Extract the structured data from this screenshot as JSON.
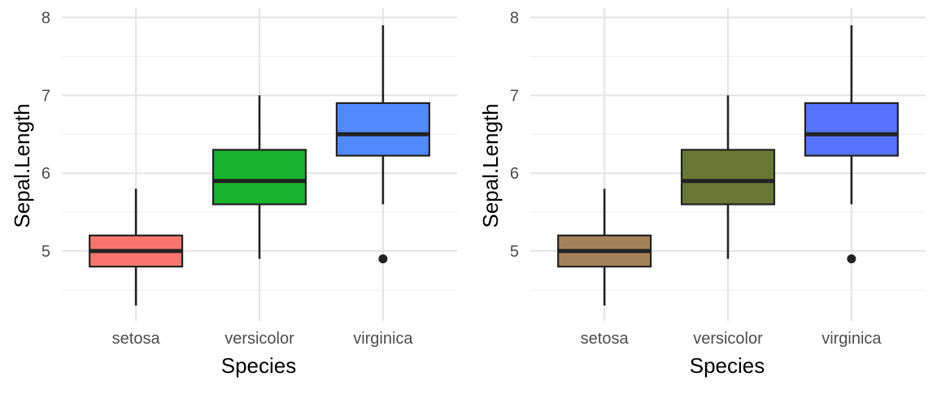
{
  "chart_data": [
    {
      "type": "boxplot",
      "xlabel": "Species",
      "ylabel": "Sepal.Length",
      "categories": [
        "setosa",
        "versicolor",
        "virginica"
      ],
      "ylim": [
        4.18,
        8.0
      ],
      "y_ticks": [
        5,
        6,
        7,
        8
      ],
      "grid": true,
      "boxes": [
        {
          "category": "setosa",
          "min": 4.3,
          "q1": 4.8,
          "median": 5.0,
          "q3": 5.2,
          "max": 5.8,
          "outliers": [],
          "fill": "#F8766D"
        },
        {
          "category": "versicolor",
          "min": 4.9,
          "q1": 5.6,
          "median": 5.9,
          "q3": 6.3,
          "max": 7.0,
          "outliers": [],
          "fill": "#19B32E"
        },
        {
          "category": "virginica",
          "min": 5.6,
          "q1": 6.225,
          "median": 6.5,
          "q3": 6.9,
          "max": 7.9,
          "outliers": [
            4.9
          ],
          "fill": "#508AFF"
        }
      ]
    },
    {
      "type": "boxplot",
      "xlabel": "Species",
      "ylabel": "Sepal.Length",
      "categories": [
        "setosa",
        "versicolor",
        "virginica"
      ],
      "ylim": [
        4.18,
        8.0
      ],
      "y_ticks": [
        5,
        6,
        7,
        8
      ],
      "grid": true,
      "boxes": [
        {
          "category": "setosa",
          "min": 4.3,
          "q1": 4.8,
          "median": 5.0,
          "q3": 5.2,
          "max": 5.8,
          "outliers": [],
          "fill": "#A48259"
        },
        {
          "category": "versicolor",
          "min": 4.9,
          "q1": 5.6,
          "median": 5.9,
          "q3": 6.3,
          "max": 7.0,
          "outliers": [],
          "fill": "#6B7835"
        },
        {
          "category": "virginica",
          "min": 5.6,
          "q1": 6.225,
          "median": 6.5,
          "q3": 6.9,
          "max": 7.9,
          "outliers": [
            4.9
          ],
          "fill": "#5573FF"
        }
      ]
    }
  ]
}
